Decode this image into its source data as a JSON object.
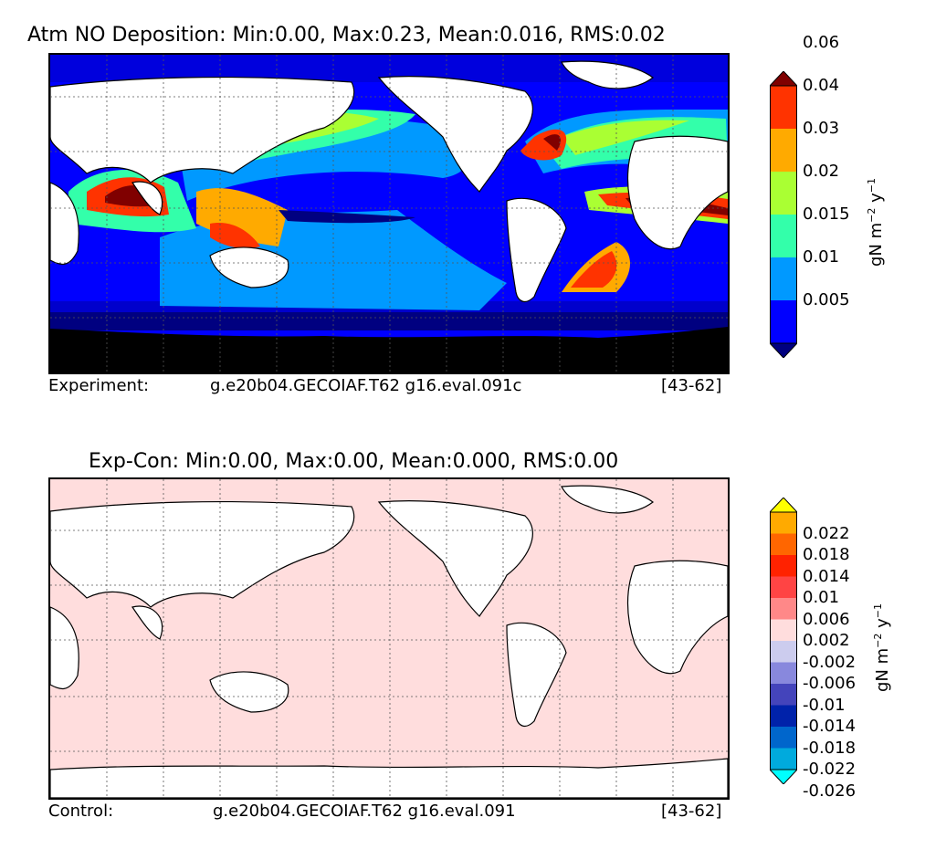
{
  "panel_top": {
    "title": "Atm NO Deposition: Min:0.00, Max:0.23, Mean:0.016, RMS:0.02",
    "footer_left": "Experiment:",
    "footer_case": "g.e20b04.GECOIAF.T62 g16.eval.091c",
    "footer_years": "[43-62]",
    "colorbar": {
      "levels": [
        "0.005",
        "0.01",
        "0.015",
        "0.02",
        "0.03",
        "0.04",
        "0.06"
      ],
      "colors": [
        "#000080",
        "#0000ff",
        "#0099ff",
        "#33ffaa",
        "#aaff33",
        "#ffaa00",
        "#ff3300",
        "#800000"
      ],
      "unit_base": "gN m",
      "unit_exp1": "−2",
      "unit_mid": " y",
      "unit_exp2": "−1"
    }
  },
  "panel_bottom": {
    "title": "Exp-Con: Min:0.00, Max:0.00, Mean:0.000, RMS:0.00",
    "footer_left": "Control:",
    "footer_case": "g.e20b04.GECOIAF.T62 g16.eval.091",
    "footer_years": "[43-62]",
    "colorbar": {
      "levels": [
        "0.022",
        "0.018",
        "0.014",
        "0.01",
        "0.006",
        "0.002",
        "-0.002",
        "-0.006",
        "-0.01",
        "-0.014",
        "-0.018",
        "-0.022",
        "-0.026"
      ],
      "colors": [
        "#ffff00",
        "#ffaa00",
        "#ff6600",
        "#ff2200",
        "#ff4444",
        "#ff8888",
        "#ffdddd",
        "#ccccee",
        "#8888dd",
        "#4444bb",
        "#0022aa",
        "#0066cc",
        "#00aadd",
        "#00ffff"
      ],
      "unit_base": "gN m",
      "unit_exp1": "−2",
      "unit_mid": " y",
      "unit_exp2": "−1"
    }
  }
}
